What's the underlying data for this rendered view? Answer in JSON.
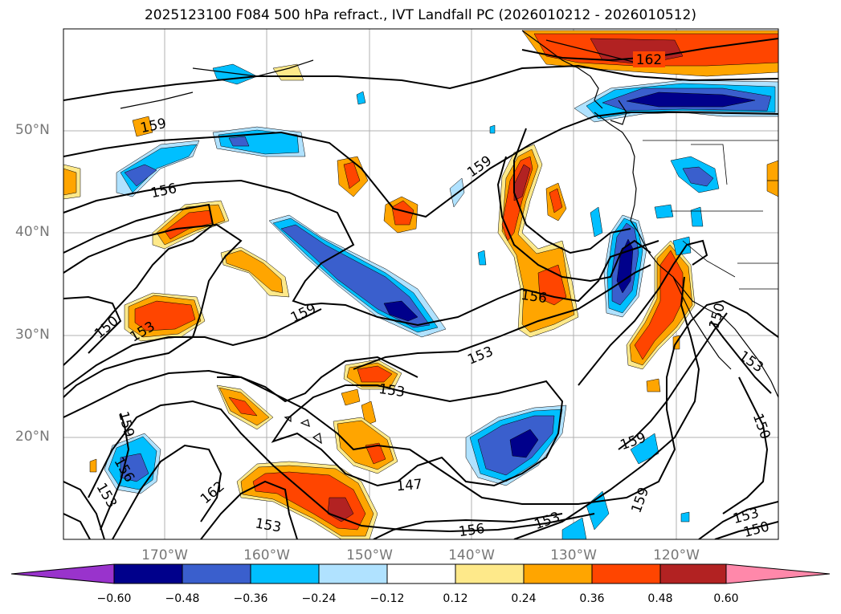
{
  "title": "2025123100 F084 500 hPa refract., IVT Landfall PC (2026010212 - 2026010512)",
  "map": {
    "lat_labels": [
      "50°N",
      "40°N",
      "30°N",
      "20°N"
    ],
    "lon_labels": [
      "170°W",
      "160°W",
      "150°W",
      "140°W",
      "130°W",
      "120°W"
    ],
    "contour_labels": [
      "162",
      "159",
      "159",
      "156",
      "156",
      "153",
      "150",
      "159",
      "153",
      "156",
      "153",
      "150",
      "147",
      "159",
      "159",
      "153",
      "156",
      "162",
      "153",
      "156",
      "153",
      "159",
      "153",
      "150",
      "150",
      "153",
      "150"
    ]
  },
  "colorbar": {
    "colors": [
      "#9933cc",
      "#00008b",
      "#3a5fcd",
      "#00bfff",
      "#b0e2ff",
      "#ffffff",
      "#fee98a",
      "#ffa500",
      "#ff4500",
      "#b22222",
      "#ff88aa"
    ],
    "labels": [
      "−0.60",
      "−0.48",
      "−0.36",
      "−0.24",
      "−0.12",
      "0.12",
      "0.24",
      "0.36",
      "0.48",
      "0.60"
    ]
  }
}
